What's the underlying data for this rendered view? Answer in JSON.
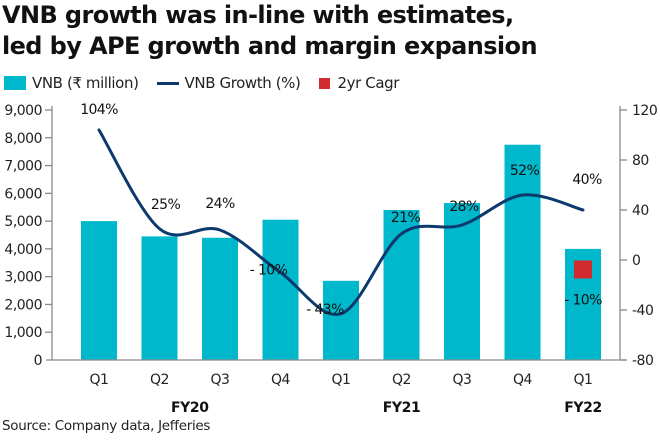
{
  "chart_data": {
    "type": "bar",
    "title": "VNB growth was in-line with estimates, led by APE growth and margin expansion",
    "title_lines": [
      "VNB growth was in-line with estimates,",
      "led by APE growth and margin expansion"
    ],
    "categories": [
      "Q1",
      "Q2",
      "Q3",
      "Q4",
      "Q1",
      "Q2",
      "Q3",
      "Q4",
      "Q1"
    ],
    "category_groups": [
      {
        "label": "FY20",
        "center_index": 1.5
      },
      {
        "label": "FY21",
        "center_index": 5
      },
      {
        "label": "FY22",
        "center_index": 8
      }
    ],
    "series": [
      {
        "name": "VNB (₹ million)",
        "type": "bar",
        "axis": "left",
        "color": "#00b8cc",
        "values": [
          5000,
          4450,
          4400,
          5050,
          2850,
          5400,
          5650,
          7750,
          4000
        ]
      },
      {
        "name": "VNB Growth (%)",
        "type": "line",
        "axis": "right",
        "color": "#0d3a6e",
        "values": [
          104,
          25,
          24,
          -10,
          -43,
          21,
          28,
          52,
          40
        ],
        "labels": [
          "104%",
          "25%",
          "24%",
          "- 10%",
          "- 43%",
          "21%",
          "28%",
          "52%",
          "40%"
        ]
      },
      {
        "name": "2yr Cagr",
        "type": "marker",
        "axis": "right",
        "color": "#d12a2f",
        "points": [
          {
            "index": 8,
            "value": -10,
            "label": "- 10%"
          }
        ]
      }
    ],
    "left_axis": {
      "ylim": [
        0,
        9000
      ],
      "ticks": [
        0,
        1000,
        2000,
        3000,
        4000,
        5000,
        6000,
        7000,
        8000,
        9000
      ],
      "tick_labels": [
        "0",
        "1,000",
        "2,000",
        "3,000",
        "4,000",
        "5,000",
        "6,000",
        "7,000",
        "8,000",
        "9,000"
      ]
    },
    "right_axis": {
      "ylim": [
        -80,
        120
      ],
      "ticks": [
        -80,
        -40,
        0,
        40,
        80,
        120
      ],
      "tick_labels": [
        "-80",
        "-40",
        "0",
        "40",
        "80",
        "120"
      ]
    },
    "xlabel": "",
    "ylabel": "",
    "grid": false,
    "legend_position": "top-left"
  },
  "legend": {
    "items": [
      {
        "label": "VNB (₹ million)",
        "color": "#00b8cc"
      },
      {
        "label": "VNB Growth (%)",
        "color": "#0d3a6e"
      },
      {
        "label": "2yr Cagr",
        "color": "#d12a2f"
      }
    ]
  },
  "source": "Source: Company data, Jefferies"
}
